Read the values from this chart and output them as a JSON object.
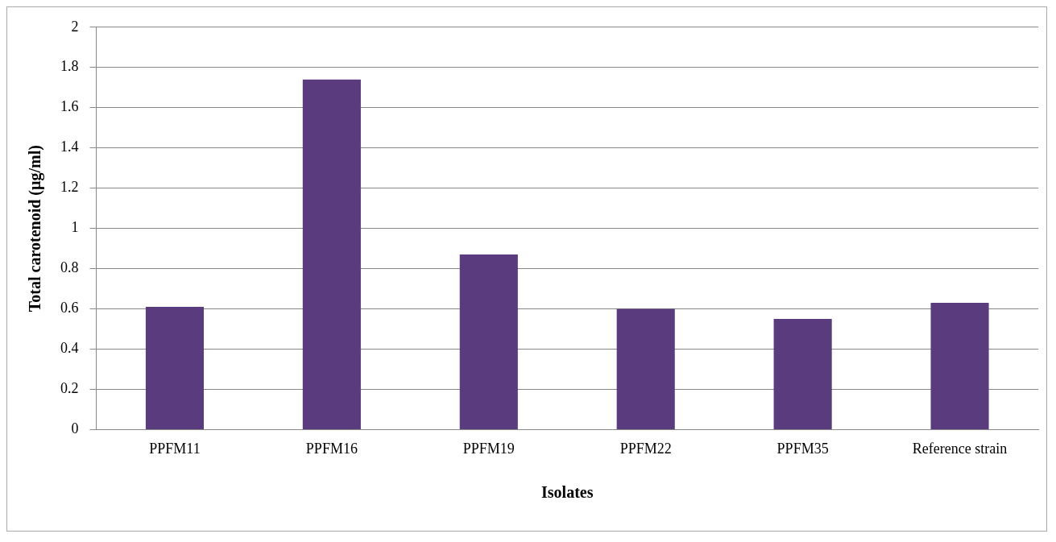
{
  "chart_data": {
    "type": "bar",
    "xlabel": "Isolates",
    "ylabel": "Total carotenoid (µg/ml)",
    "categories": [
      "PPFM11",
      "PPFM16",
      "PPFM19",
      "PPFM22",
      "PPFM35",
      "Reference strain"
    ],
    "values": [
      0.61,
      1.74,
      0.87,
      0.6,
      0.55,
      0.63
    ],
    "color": "#5a3c7e",
    "ylim": [
      0,
      2
    ],
    "yticks": [
      0,
      0.2,
      0.4,
      0.6,
      0.8,
      1,
      1.2,
      1.4,
      1.6,
      1.8,
      2
    ],
    "grid": "y"
  }
}
